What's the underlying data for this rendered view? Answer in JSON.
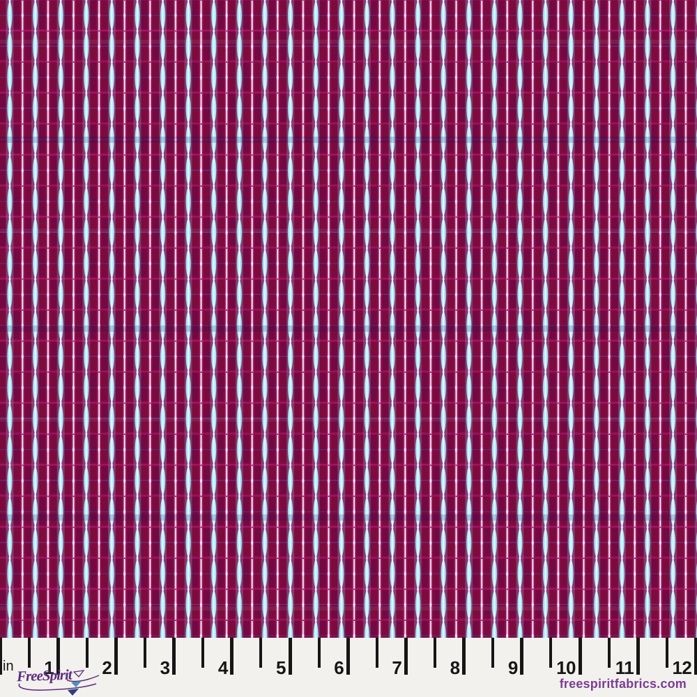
{
  "fabric": {
    "pattern_name": "vertical-ikat-stripe-fabric",
    "colors": {
      "base": "#8C0C4D",
      "block_shadow": "#5E0834",
      "block_red": "#8A0A30",
      "grout": "#AE1668",
      "accent_purple": "#7A55C8",
      "accent_blue": "#4A66C8",
      "stripe_cyan": "#A6E6F6",
      "stripe_cyan_glow": "#7FC8E8",
      "stripe_cyan_bright": "#D5F5FD",
      "stripe_core": "#F0FCFF",
      "stripe_thin": "#F4DEF4",
      "stripe_thin_glow": "#E8C8EA",
      "stripe_thin_diamond": "#F8E8F8",
      "stripe_pinch_dark": "#60083A",
      "node_diamond": "#E2F8FF",
      "band_shadow": "#241055",
      "band_light": "#BFEFFA"
    }
  },
  "ruler": {
    "unit_label": "in",
    "labels": [
      "1",
      "2",
      "3",
      "4",
      "5",
      "6",
      "7",
      "8",
      "9",
      "10",
      "11",
      "12"
    ],
    "tick_color": "#161616",
    "number_color": "#161616",
    "background": "#F2F1EE"
  },
  "footer": {
    "brand": "FreeSpirit",
    "brand_color": "#5D2B7D",
    "website": "freespiritfabrics.com",
    "website_color": "#7C3D92",
    "logo_open_triangle": "#F2F1EE",
    "logo_triangle_teal": "#4A93B8",
    "logo_triangle_navy": "#2C3F7E"
  }
}
